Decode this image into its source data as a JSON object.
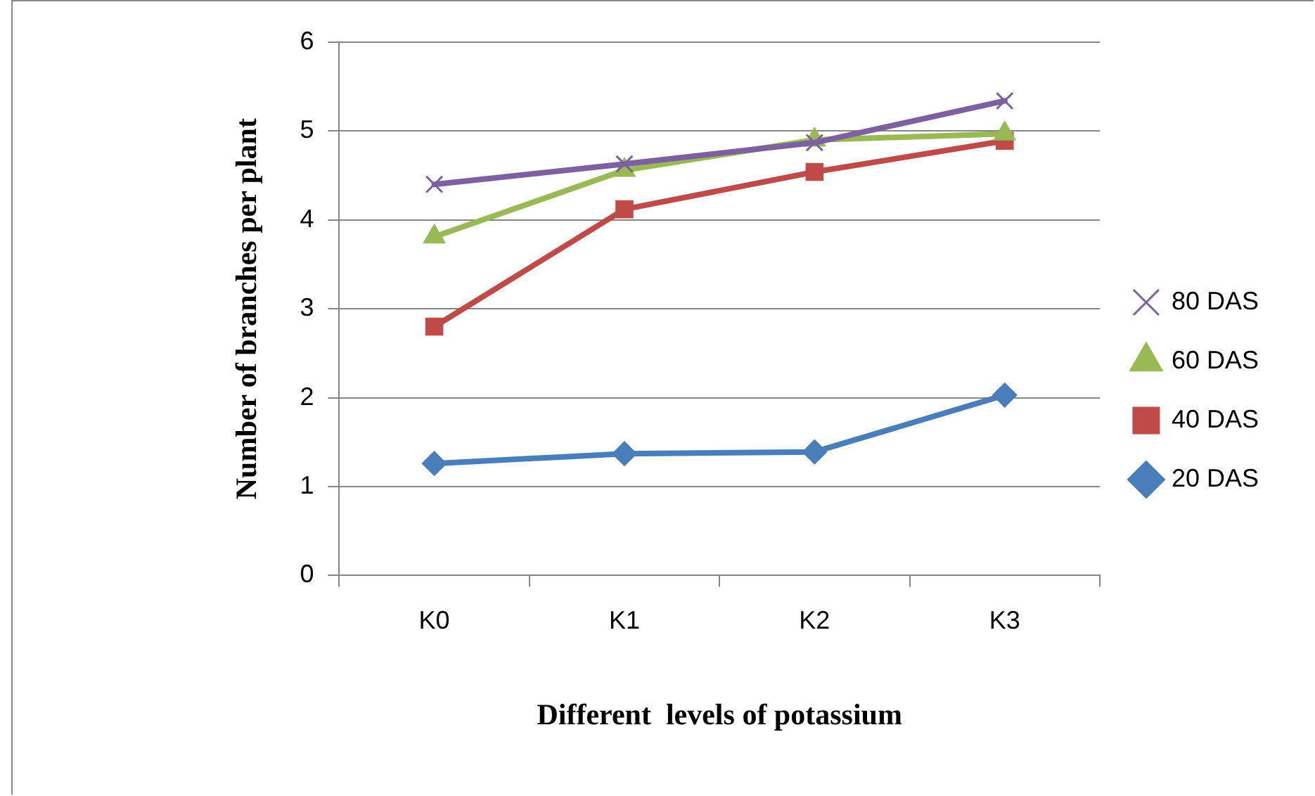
{
  "chart_data": {
    "type": "line",
    "xlabel": "Different  levels of potassium",
    "ylabel": "Number of branches per plant",
    "categories": [
      "K0",
      "K1",
      "K2",
      "K3"
    ],
    "series": [
      {
        "name": "20 DAS",
        "color": "#4a7ebb",
        "marker": "diamond",
        "values": [
          1.26,
          1.37,
          1.39,
          2.03
        ]
      },
      {
        "name": "40 DAS",
        "color": "#be4b48",
        "marker": "square",
        "values": [
          2.8,
          4.12,
          4.54,
          4.89
        ]
      },
      {
        "name": "60 DAS",
        "color": "#98b954",
        "marker": "triangle",
        "values": [
          3.81,
          4.56,
          4.9,
          4.97
        ]
      },
      {
        "name": "80 DAS",
        "color": "#7d60a0",
        "marker": "cross",
        "values": [
          4.4,
          4.63,
          4.87,
          5.34
        ]
      }
    ],
    "ylim": [
      0,
      6
    ],
    "yticks": [
      0,
      1,
      2,
      3,
      4,
      5,
      6
    ],
    "grid": "y",
    "legend": "right",
    "line_style": "solid"
  }
}
